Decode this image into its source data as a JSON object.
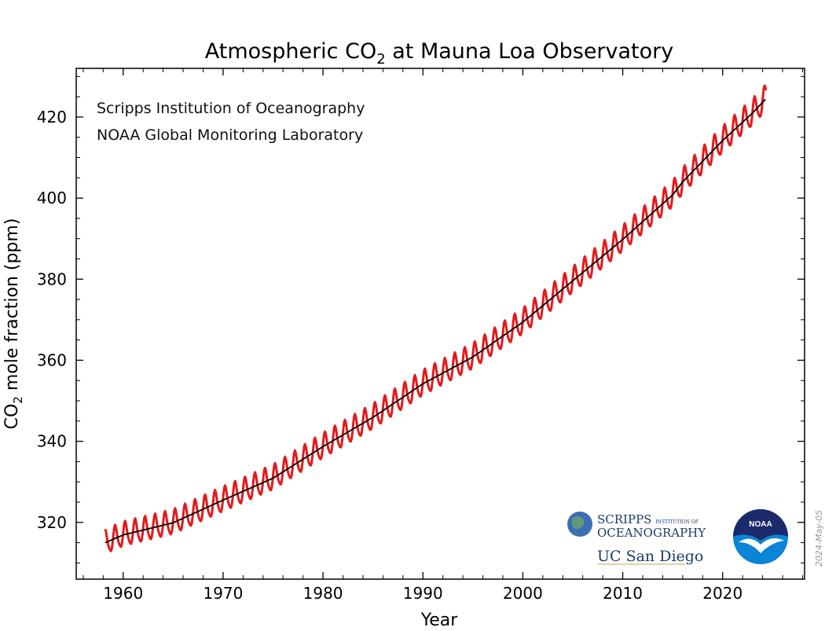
{
  "chart_data": {
    "type": "line",
    "title_main": "Atmospheric CO",
    "title_sub": "2",
    "title_rest": " at Mauna Loa Observatory",
    "xlabel": "Year",
    "ylabel_main": "CO",
    "ylabel_sub": "2",
    "ylabel_rest": " mole fraction (ppm)",
    "xlim": [
      1955.3,
      2028.2
    ],
    "ylim": [
      306,
      432
    ],
    "x_ticks": [
      1960,
      1970,
      1980,
      1990,
      2000,
      2010,
      2020
    ],
    "y_ticks": [
      320,
      340,
      360,
      380,
      400,
      420
    ],
    "grid": false,
    "annotations": [
      "Scripps Institution of Oceanography",
      "NOAA Global Monitoring Laboratory"
    ],
    "series": [
      {
        "color": "#e31a1c",
        "style": "monthly mean with seasonal cycle",
        "x": [
          1958.2,
          2024.33
        ],
        "y_start": 315.7,
        "y_end": 426.6
      },
      {
        "color": "#000000",
        "style": "seasonally adjusted trend",
        "trend_points": [
          [
            1958.2,
            315.0
          ],
          [
            1960,
            316.9
          ],
          [
            1965,
            319.9
          ],
          [
            1970,
            325.5
          ],
          [
            1975,
            330.9
          ],
          [
            1980,
            338.7
          ],
          [
            1985,
            345.9
          ],
          [
            1990,
            354.2
          ],
          [
            1995,
            360.8
          ],
          [
            2000,
            369.4
          ],
          [
            2005,
            379.6
          ],
          [
            2010,
            389.8
          ],
          [
            2015,
            400.8
          ],
          [
            2016,
            404.0
          ],
          [
            2020,
            414.2
          ],
          [
            2023,
            421.0
          ],
          [
            2024.33,
            424.5
          ]
        ]
      }
    ]
  },
  "logos": {
    "scripps_line1": "SCRIPPS",
    "scripps_small": "INSTITUTION OF",
    "scripps_line2": "OCEANOGRAPHY",
    "ucsd": "UC San Diego",
    "noaa": "NOAA"
  },
  "date_stamp": "2024-May-05"
}
